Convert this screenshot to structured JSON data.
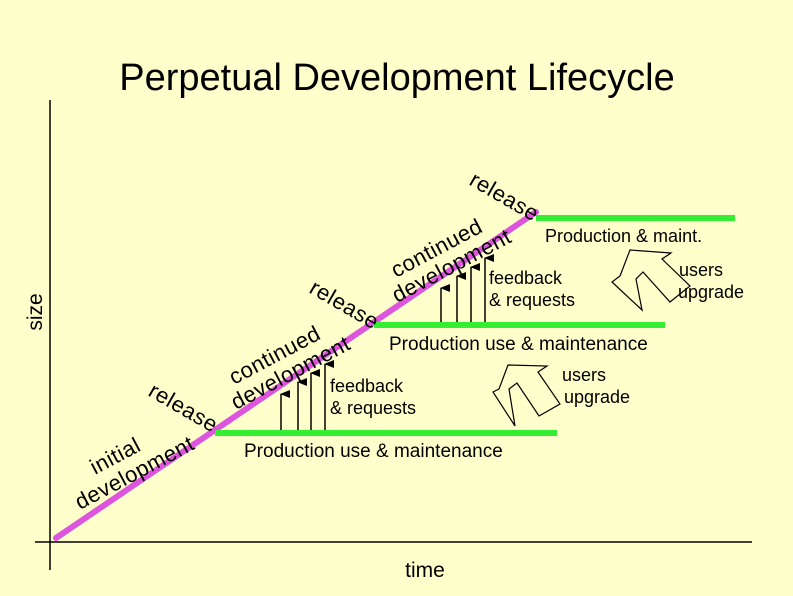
{
  "title": "Perpetual Development Lifecycle",
  "axes": {
    "y_label": "size",
    "x_label": "time"
  },
  "phases": {
    "initial_1": "initial",
    "initial_2": "development",
    "release_1": "release",
    "continued_a1": "continued",
    "continued_a2": "development",
    "release_2": "release",
    "continued_b1": "continued",
    "continued_b2": "development",
    "release_3": "release"
  },
  "feedback": {
    "lower_1": "feedback",
    "lower_2": "& requests",
    "upper_1": "feedback",
    "upper_2": "& requests"
  },
  "upgrades": {
    "lower_1": "users",
    "lower_2": "upgrade",
    "upper_1": "users",
    "upper_2": "upgrade"
  },
  "bars": {
    "lower": "Production use & maintenance",
    "middle": "Production use & maintenance",
    "top": "Production & maint."
  },
  "colors": {
    "background": "#FFFFCC",
    "lifecycle_line": "#DD55DD",
    "production_bar": "#33EE33",
    "ink": "#000000"
  }
}
